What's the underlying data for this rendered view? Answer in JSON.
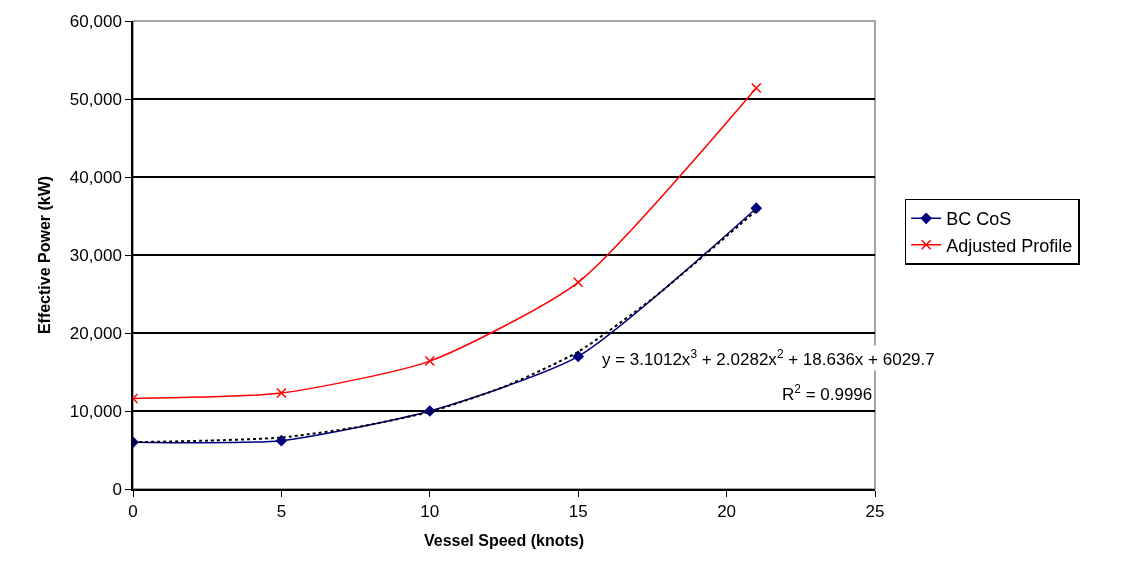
{
  "chart_data": {
    "type": "line",
    "xlabel": "Vessel Speed (knots)",
    "ylabel": "Effective Power (kW)",
    "x": [
      0,
      5,
      10,
      15,
      21
    ],
    "series": [
      {
        "name": "BC CoS",
        "color": "#000080",
        "marker": "diamond",
        "values": [
          6000,
          6200,
          10000,
          17000,
          36000
        ]
      },
      {
        "name": "Adjusted Profile",
        "color": "#ff0000",
        "marker": "cross",
        "values": [
          11600,
          12300,
          16400,
          26500,
          51400
        ]
      },
      {
        "type": "line",
        "color": "#000000",
        "marker": "none",
        "line_style": "dotted",
        "x": [
          0,
          2.5,
          5,
          7.5,
          10,
          12.5,
          15,
          17.5,
          21
        ],
        "values": [
          6000,
          6200,
          6600,
          7900,
          9900,
          13100,
          17600,
          24400,
          35700
        ]
      }
    ],
    "xlim": [
      0,
      25
    ],
    "xticks": [
      0,
      5,
      10,
      15,
      20,
      25
    ],
    "ylim": [
      0,
      60000
    ],
    "yticks": [
      {
        "value": 0,
        "label": "0"
      },
      {
        "value": 10000,
        "label": "10,000"
      },
      {
        "value": 20000,
        "label": "20,000"
      },
      {
        "value": 30000,
        "label": "30,000"
      },
      {
        "value": 40000,
        "label": "40,000"
      },
      {
        "value": 50000,
        "label": "50,000"
      },
      {
        "value": 60000,
        "label": "60,000"
      }
    ],
    "grid": "y",
    "legend": "right",
    "annotations": [
      "y = 3.1012x$^{3}$ + 2.0282x$^{2}$ + 18.636x + 6029.7",
      "R$^{2}$ = 0.9996"
    ]
  }
}
